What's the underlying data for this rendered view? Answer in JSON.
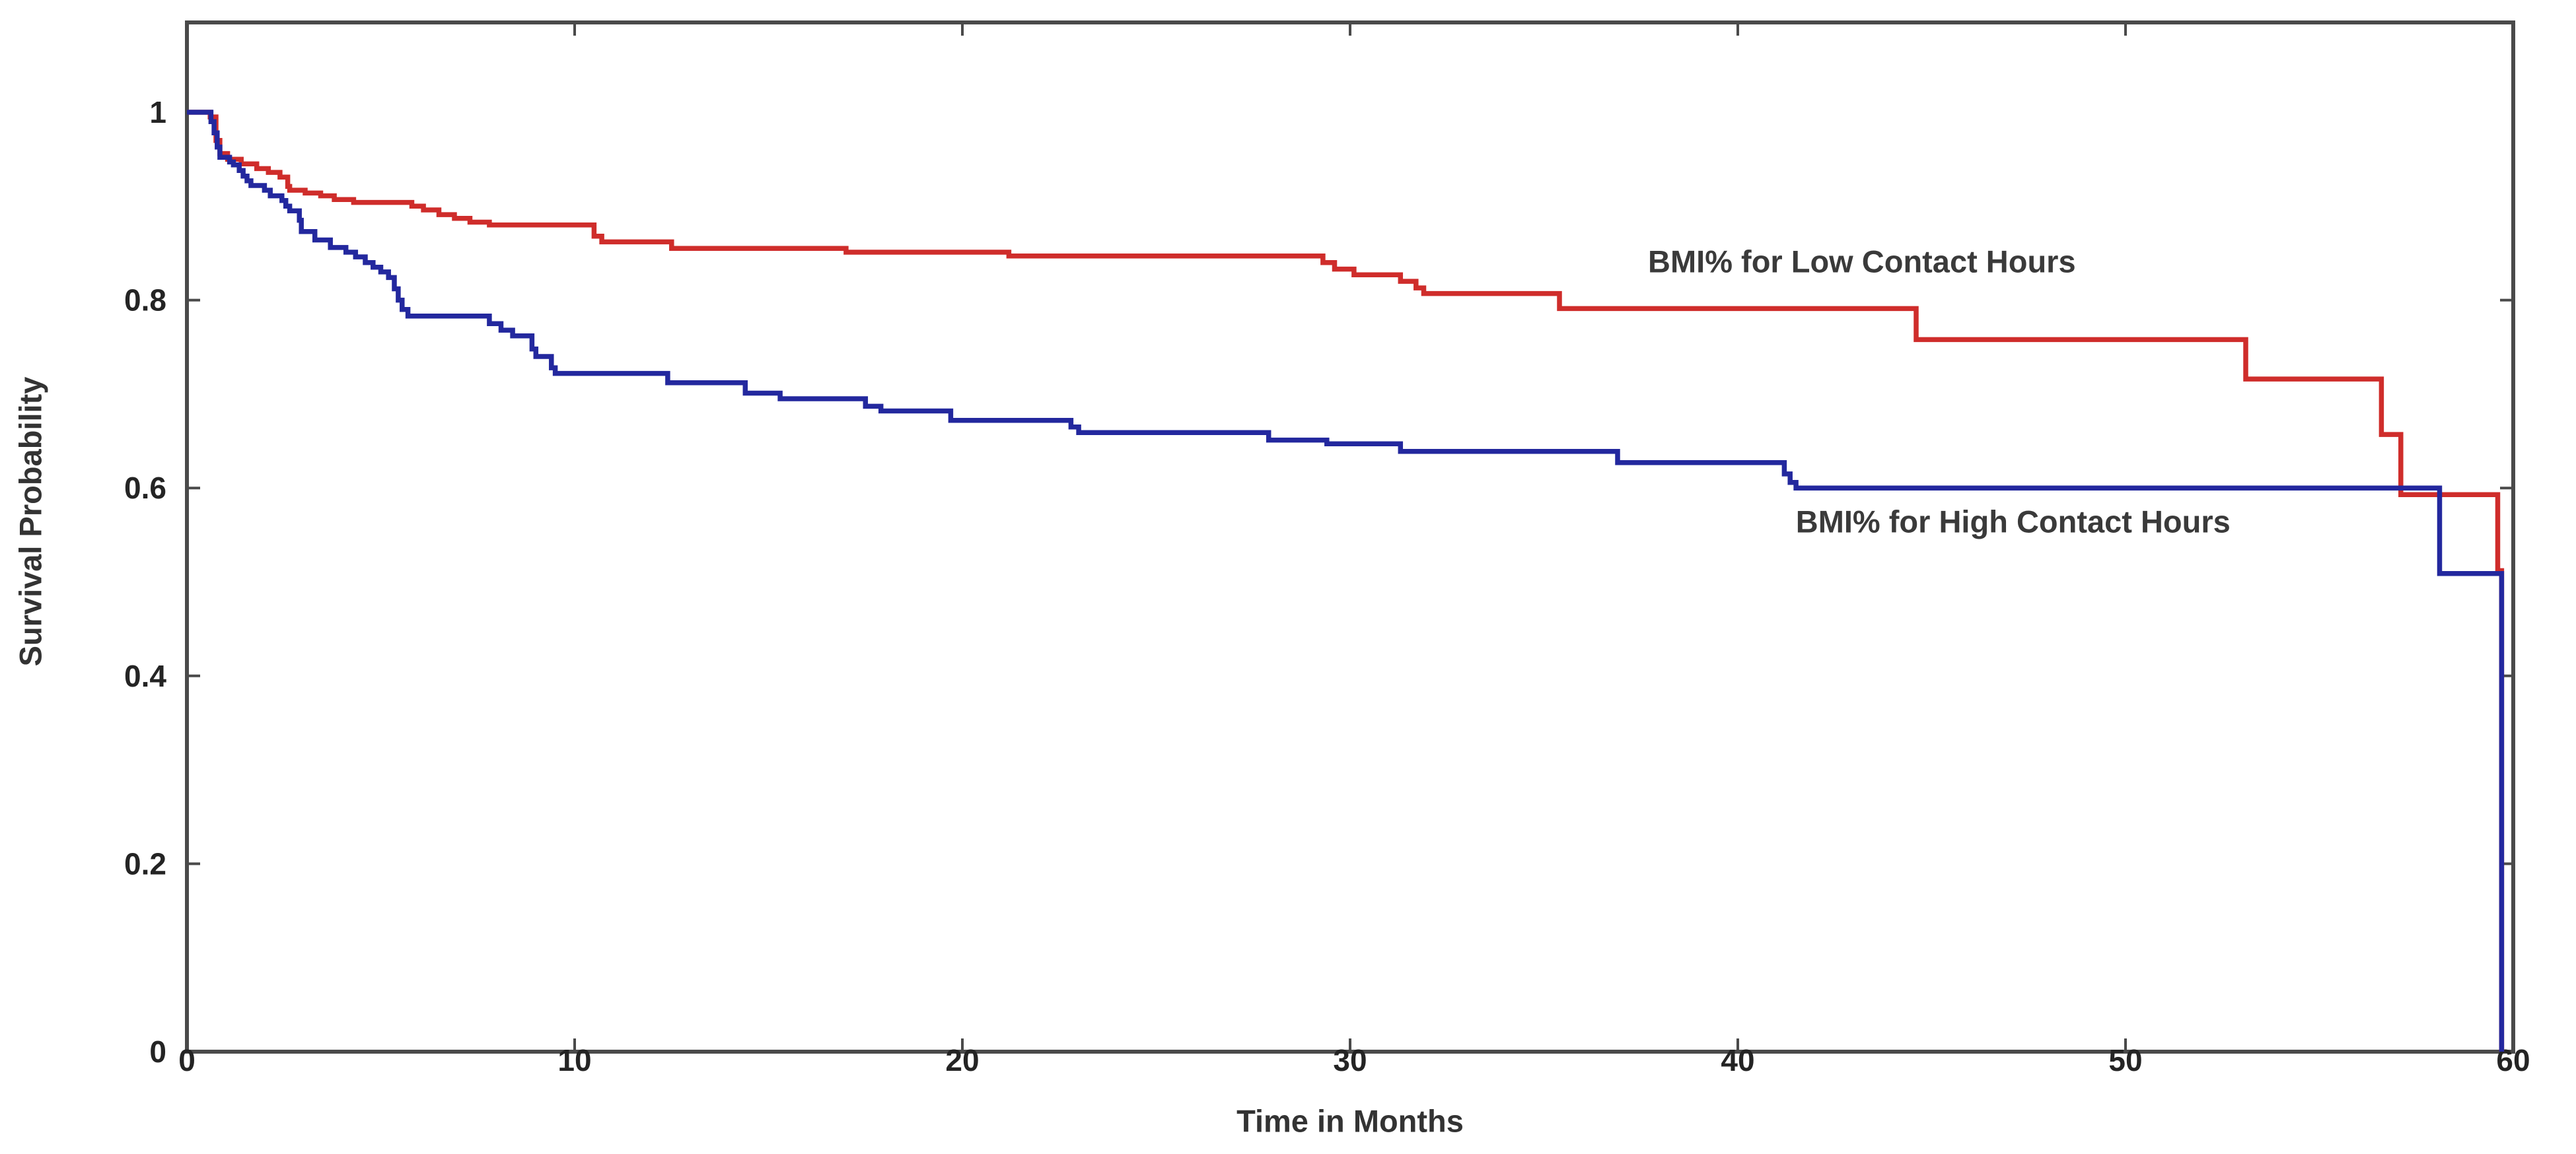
{
  "page": {
    "background_color": "#ffffff"
  },
  "chart_data": {
    "type": "line",
    "subtype": "kaplan_meier_step",
    "title": "",
    "xlabel": "Time in Months",
    "ylabel": "Survival Probability",
    "xlim": [
      0,
      60
    ],
    "ylim": [
      0,
      1.096
    ],
    "grid": false,
    "legend_position": "inline-annotations",
    "axis_color": "#4a4a4a",
    "tick_label_color": "#242424",
    "x_ticks": [
      0,
      10,
      20,
      30,
      40,
      50,
      60
    ],
    "x_tick_labels": [
      "0",
      "10",
      "20",
      "30",
      "40",
      "50",
      "60"
    ],
    "y_ticks": [
      0,
      0.2,
      0.4,
      0.6,
      0.8,
      1
    ],
    "y_tick_labels": [
      "0",
      "0.2",
      "0.4",
      "0.6",
      "0.8",
      "1"
    ],
    "series": [
      {
        "name": "BMI% for Low Contact Hours",
        "color": "#cf2d2b",
        "points": [
          [
            0,
            1.0
          ],
          [
            0.6,
            0.995
          ],
          [
            0.75,
            0.97
          ],
          [
            0.85,
            0.956
          ],
          [
            1.05,
            0.95
          ],
          [
            1.4,
            0.945
          ],
          [
            1.8,
            0.94
          ],
          [
            2.1,
            0.936
          ],
          [
            2.4,
            0.931
          ],
          [
            2.6,
            0.921
          ],
          [
            2.65,
            0.917
          ],
          [
            3.05,
            0.914
          ],
          [
            3.45,
            0.911
          ],
          [
            3.8,
            0.907
          ],
          [
            4.3,
            0.904
          ],
          [
            5.8,
            0.9
          ],
          [
            6.1,
            0.896
          ],
          [
            6.5,
            0.891
          ],
          [
            6.9,
            0.887
          ],
          [
            7.3,
            0.883
          ],
          [
            7.8,
            0.88
          ],
          [
            10.5,
            0.868
          ],
          [
            10.7,
            0.862
          ],
          [
            12.5,
            0.855
          ],
          [
            17.0,
            0.851
          ],
          [
            21.2,
            0.847
          ],
          [
            29.3,
            0.84
          ],
          [
            29.6,
            0.833
          ],
          [
            30.1,
            0.827
          ],
          [
            31.3,
            0.82
          ],
          [
            31.7,
            0.813
          ],
          [
            31.9,
            0.807
          ],
          [
            35.4,
            0.791
          ],
          [
            44.6,
            0.758
          ],
          [
            53.1,
            0.716
          ],
          [
            56.6,
            0.657
          ],
          [
            57.1,
            0.593
          ],
          [
            59.6,
            0.512
          ],
          [
            59.7,
            0.0
          ]
        ]
      },
      {
        "name": "BMI% for High Contact Hours",
        "color": "#23289e",
        "points": [
          [
            0,
            1.0
          ],
          [
            0.62,
            0.99
          ],
          [
            0.7,
            0.978
          ],
          [
            0.78,
            0.963
          ],
          [
            0.85,
            0.952
          ],
          [
            1.1,
            0.947
          ],
          [
            1.2,
            0.944
          ],
          [
            1.35,
            0.938
          ],
          [
            1.45,
            0.932
          ],
          [
            1.55,
            0.927
          ],
          [
            1.65,
            0.922
          ],
          [
            2.0,
            0.917
          ],
          [
            2.15,
            0.911
          ],
          [
            2.45,
            0.906
          ],
          [
            2.55,
            0.9
          ],
          [
            2.65,
            0.895
          ],
          [
            2.9,
            0.885
          ],
          [
            2.95,
            0.873
          ],
          [
            3.3,
            0.864
          ],
          [
            3.7,
            0.856
          ],
          [
            4.1,
            0.851
          ],
          [
            4.35,
            0.846
          ],
          [
            4.6,
            0.84
          ],
          [
            4.8,
            0.835
          ],
          [
            5.0,
            0.83
          ],
          [
            5.2,
            0.824
          ],
          [
            5.35,
            0.812
          ],
          [
            5.45,
            0.8
          ],
          [
            5.55,
            0.79
          ],
          [
            5.7,
            0.783
          ],
          [
            7.8,
            0.775
          ],
          [
            8.1,
            0.768
          ],
          [
            8.4,
            0.762
          ],
          [
            8.9,
            0.748
          ],
          [
            9.0,
            0.74
          ],
          [
            9.4,
            0.728
          ],
          [
            9.5,
            0.722
          ],
          [
            12.4,
            0.712
          ],
          [
            14.4,
            0.701
          ],
          [
            15.3,
            0.695
          ],
          [
            17.5,
            0.687
          ],
          [
            17.9,
            0.682
          ],
          [
            19.7,
            0.672
          ],
          [
            22.8,
            0.665
          ],
          [
            23.0,
            0.659
          ],
          [
            27.9,
            0.651
          ],
          [
            29.4,
            0.647
          ],
          [
            31.3,
            0.639
          ],
          [
            36.9,
            0.627
          ],
          [
            41.2,
            0.615
          ],
          [
            41.35,
            0.606
          ],
          [
            41.5,
            0.6
          ],
          [
            58.1,
            0.509
          ],
          [
            59.7,
            0.0
          ]
        ]
      }
    ],
    "annotations": [
      {
        "text": "BMI% for Low Contact Hours",
        "x": 43.2,
        "y": 0.841,
        "color": "#3a3a3a"
      },
      {
        "text": "BMI% for High Contact Hours",
        "x": 47.1,
        "y": 0.564,
        "color": "#3a3a3a"
      }
    ]
  }
}
